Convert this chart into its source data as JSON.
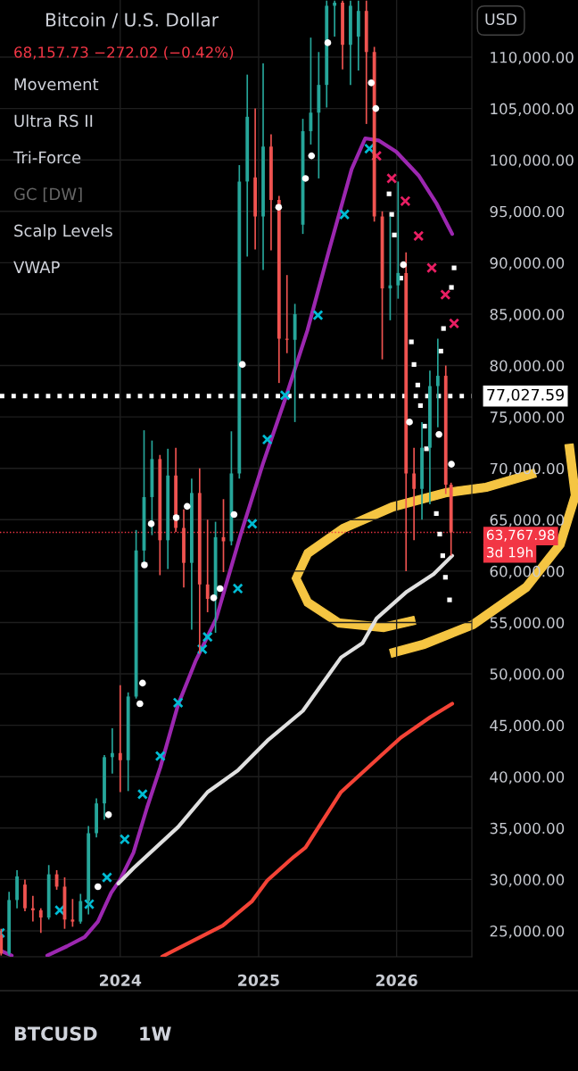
{
  "chart_data": {
    "type": "candlestick",
    "title": "Bitcoin / U.S. Dollar",
    "subtitle": "68,157.73 −272.02 (−0.42%)",
    "annotations": [
      "Movement",
      "Ultra RS II",
      "Tri-Force",
      "GC [DW]",
      "Scalp Levels",
      "VWAP",
      "3d 19h",
      "USD",
      "BTCUSD",
      "1W"
    ],
    "x": [
      "2023-02-20",
      "2023-03-13",
      "2023-04-03",
      "2023-04-24",
      "2023-05-15",
      "2023-06-05",
      "2023-06-26",
      "2023-07-17",
      "2023-08-07",
      "2023-08-28",
      "2023-09-18",
      "2023-10-09",
      "2023-10-30",
      "2023-11-20",
      "2023-12-11",
      "2024-01-01",
      "2024-01-22",
      "2024-02-12",
      "2024-03-04",
      "2024-03-25",
      "2024-04-15",
      "2024-05-06",
      "2024-05-27",
      "2024-06-17",
      "2024-07-08",
      "2024-07-29",
      "2024-08-19",
      "2024-09-09",
      "2024-09-30",
      "2024-10-21",
      "2024-11-11",
      "2024-12-02",
      "2024-12-23",
      "2025-01-13",
      "2025-02-03",
      "2025-02-24",
      "2025-03-17",
      "2025-04-07",
      "2025-04-28",
      "2025-05-19",
      "2025-06-09",
      "2025-06-30",
      "2025-07-21",
      "2025-08-11",
      "2025-09-01",
      "2025-09-22",
      "2025-10-13",
      "2025-11-03",
      "2025-11-24",
      "2025-12-15",
      "2026-01-05",
      "2026-01-26",
      "2026-02-16",
      "2026-03-09",
      "2026-03-30",
      "2026-04-20",
      "2026-05-11",
      "2026-05-25"
    ],
    "ohlc": [
      [
        24600,
        25200,
        22600,
        22800
      ],
      [
        22800,
        28800,
        22600,
        28000
      ],
      [
        28000,
        30900,
        27200,
        30300
      ],
      [
        29500,
        30000,
        26900,
        27200
      ],
      [
        27200,
        28400,
        25900,
        27000
      ],
      [
        27000,
        27200,
        24800,
        26300
      ],
      [
        26300,
        31400,
        26100,
        30500
      ],
      [
        30500,
        30900,
        29000,
        29300
      ],
      [
        29300,
        30200,
        25200,
        26100
      ],
      [
        26100,
        28100,
        25400,
        25900
      ],
      [
        25900,
        28600,
        25700,
        27900
      ],
      [
        27900,
        35200,
        26600,
        34500
      ],
      [
        34500,
        37900,
        34100,
        37400
      ],
      [
        37400,
        42100,
        35800,
        41900
      ],
      [
        41900,
        44700,
        40300,
        42300
      ],
      [
        42300,
        48900,
        38500,
        41600
      ],
      [
        41600,
        48200,
        38600,
        47800
      ],
      [
        47800,
        64000,
        47600,
        62000
      ],
      [
        62000,
        73700,
        60800,
        67200
      ],
      [
        67200,
        72700,
        63500,
        70900
      ],
      [
        70900,
        71300,
        59600,
        63000
      ],
      [
        63000,
        71900,
        60200,
        69300
      ],
      [
        69300,
        72000,
        63800,
        64200
      ],
      [
        64200,
        66000,
        58400,
        60800
      ],
      [
        60800,
        69000,
        54300,
        67600
      ],
      [
        67600,
        70000,
        52000,
        58700
      ],
      [
        58700,
        65000,
        56000,
        57300
      ],
      [
        57300,
        64800,
        54000,
        63300
      ],
      [
        63300,
        67000,
        59900,
        62900
      ],
      [
        62900,
        73600,
        62500,
        69500
      ],
      [
        69500,
        99500,
        69000,
        97900
      ],
      [
        97900,
        108300,
        90600,
        104200
      ],
      [
        98300,
        105000,
        91300,
        94500
      ],
      [
        94500,
        109400,
        89300,
        101300
      ],
      [
        101300,
        102500,
        91200,
        96100
      ],
      [
        96100,
        96500,
        78300,
        82600
      ],
      [
        82600,
        88800,
        81200,
        82500
      ],
      [
        82500,
        86000,
        74500,
        85000
      ],
      [
        93700,
        104000,
        92800,
        102800
      ],
      [
        102800,
        111900,
        101500,
        104600
      ],
      [
        104600,
        110500,
        98200,
        107300
      ],
      [
        107300,
        115500,
        105100,
        115000
      ],
      [
        115000,
        115500,
        112000,
        115300
      ],
      [
        115300,
        115500,
        108800,
        111200
      ],
      [
        111200,
        115500,
        107300,
        115000
      ],
      [
        112000,
        115500,
        108700,
        114500
      ],
      [
        114500,
        115500,
        103500,
        110500
      ],
      [
        110500,
        111000,
        94000,
        94500
      ],
      [
        94500,
        95000,
        80600,
        87500
      ],
      [
        87500,
        94500,
        84400,
        87800
      ],
      [
        87800,
        97900,
        86500,
        89000
      ],
      [
        89000,
        91000,
        60000,
        69500
      ],
      [
        69500,
        72000,
        63000,
        68000
      ],
      [
        68000,
        74500,
        65000,
        72000
      ],
      [
        72000,
        79500,
        66500,
        78000
      ],
      [
        78000,
        82600,
        74000,
        79000
      ],
      [
        79000,
        80000,
        67500,
        68400
      ],
      [
        68400,
        68600,
        61500,
        63767.98
      ]
    ],
    "series": [
      {
        "type": "line",
        "color": "#9c27b0",
        "x": [
          "2023-02-17",
          "2023-03-20",
          "2023-05-01",
          "2023-06-22",
          "2023-08-13",
          "2023-09-29",
          "2023-11-03",
          "2023-12-08",
          "2024-01-01",
          "2024-02-05",
          "2024-03-12",
          "2024-04-16",
          "2024-06-02",
          "2024-07-19",
          "2024-09-11",
          "2024-11-14",
          "2025-01-12",
          "2025-03-12",
          "2025-05-10",
          "2025-07-07",
          "2025-09-04",
          "2025-10-10",
          "2025-11-14",
          "2025-12-31",
          "2026-02-28",
          "2026-04-16",
          "2026-05-28"
        ],
        "values": [
          23100,
          22600,
          null,
          22600,
          23500,
          24400,
          25900,
          28700,
          30000,
          32600,
          37000,
          40900,
          47000,
          51300,
          55400,
          63500,
          70400,
          76700,
          83400,
          91300,
          99100,
          102100,
          101900,
          100800,
          98500,
          95800,
          92800
        ]
      },
      {
        "type": "scatter",
        "marker": "cross",
        "color": "#00bcd4",
        "x": [
          "2023-02-17",
          "2023-07-25",
          "2023-10-11",
          "2023-11-27",
          "2024-01-13",
          "2024-02-29",
          "2024-04-16",
          "2024-06-02",
          "2024-08-05",
          "2024-08-19",
          "2024-11-07",
          "2024-12-15",
          "2025-01-24",
          "2025-03-12",
          "2025-06-07",
          "2025-08-16",
          "2025-10-21"
        ],
        "values": [
          24800,
          27000,
          27600,
          30200,
          33900,
          38300,
          42000,
          47200,
          52400,
          53600,
          58300,
          64600,
          72800,
          77100,
          84900,
          94700,
          101100
        ]
      },
      {
        "type": "scatter",
        "marker": "cross",
        "color": "#e91e63",
        "x": [
          "2025-11-09",
          "2025-12-19",
          "2026-01-24",
          "2026-02-28",
          "2026-04-04",
          "2026-05-10",
          "2026-06-02"
        ],
        "values": [
          100400,
          98200,
          96000,
          92600,
          89500,
          86900,
          84100
        ]
      },
      {
        "type": "line",
        "color": "#e0e0e0",
        "x": [
          "2023-12-27",
          "2024-02-05",
          "2024-06-02",
          "2024-08-19",
          "2024-11-07",
          "2025-01-24",
          "2025-04-28",
          "2025-08-07",
          "2025-10-03",
          "2025-11-09",
          "2026-01-28",
          "2026-04-09",
          "2026-05-28"
        ],
        "values": [
          29600,
          31100,
          35100,
          38500,
          40600,
          43500,
          46400,
          51600,
          53000,
          55400,
          58000,
          59700,
          61500
        ]
      },
      {
        "type": "line",
        "color": "#f44336",
        "x": [
          "2024-04-21",
          "2024-06-02",
          "2024-09-28",
          "2024-12-15",
          "2025-01-24",
          "2025-04-04",
          "2025-05-05",
          "2025-08-07",
          "2025-11-19",
          "2026-01-12",
          "2026-03-31",
          "2026-05-28"
        ],
        "values": [
          22500,
          23300,
          25500,
          27900,
          29900,
          32200,
          33100,
          38500,
          42000,
          43800,
          45800,
          47100
        ]
      },
      {
        "type": "scatter",
        "marker": "square",
        "color": "#ffffff",
        "x": [
          "2025-12-12",
          "2025-12-19",
          "2025-12-26",
          "2026-01-12",
          "2026-02-09",
          "2026-02-16",
          "2026-02-26",
          "2026-03-05",
          "2026-03-16",
          "2026-03-21",
          "2026-04-16",
          "2026-04-25",
          "2026-05-03",
          "2026-05-10",
          "2026-05-21",
          "2026-04-28",
          "2026-05-05",
          "2026-05-26",
          "2026-06-02"
        ],
        "values": [
          96700,
          94700,
          92700,
          88500,
          82300,
          80100,
          78100,
          76100,
          74100,
          71900,
          65600,
          63600,
          61500,
          59400,
          57200,
          81400,
          83600,
          87600,
          89500
        ]
      },
      {
        "type": "scatter",
        "marker": "circle",
        "color": "#ffffff",
        "x": [
          "2023-11-03",
          "2023-12-01",
          "2024-02-22",
          "2024-02-29",
          "2024-03-05",
          "2024-03-23",
          "2024-05-28",
          "2024-06-26",
          "2024-09-04",
          "2024-09-21",
          "2024-10-28",
          "2024-11-19",
          "2025-02-23",
          "2025-05-05",
          "2025-05-21",
          "2025-07-03",
          "2025-10-26",
          "2025-11-07",
          "2026-01-19",
          "2026-02-04",
          "2026-04-23",
          "2026-05-26"
        ],
        "values": [
          29300,
          36300,
          47100,
          49100,
          60600,
          64600,
          65200,
          66300,
          57400,
          58300,
          65500,
          80100,
          95400,
          98200,
          100400,
          111400,
          107500,
          105000,
          89800,
          74500,
          73300,
          70400
        ]
      }
    ],
    "ref_lines": [
      {
        "axis": "y",
        "value": 77027.59,
        "label": "77,027.59",
        "color": "#ffffff",
        "line_style": "dotted"
      },
      {
        "axis": "y",
        "value": 63767.98,
        "label": "63,767.98",
        "color": "#f23645",
        "line_style": "dotted"
      }
    ],
    "xlim": [
      "2023-02-17",
      "2026-07-19"
    ],
    "xticks": [
      {
        "value": "2024-01-01",
        "label": "2024"
      },
      {
        "value": "2025-01-01",
        "label": "2025"
      },
      {
        "value": "2026-01-01",
        "label": "2026"
      }
    ],
    "ylim": [
      22480,
      115560
    ],
    "yticks": [
      {
        "value": 25000,
        "label": "25,000.00"
      },
      {
        "value": 30000,
        "label": "30,000.00"
      },
      {
        "value": 35000,
        "label": "35,000.00"
      },
      {
        "value": 40000,
        "label": "40,000.00"
      },
      {
        "value": 45000,
        "label": "45,000.00"
      },
      {
        "value": 50000,
        "label": "50,000.00"
      },
      {
        "value": 55000,
        "label": "55,000.00"
      },
      {
        "value": 60000,
        "label": "60,000.00"
      },
      {
        "value": 65000,
        "label": "65,000.00"
      },
      {
        "value": 70000,
        "label": "70,000.00"
      },
      {
        "value": 75000,
        "label": "75,000.00"
      },
      {
        "value": 80000,
        "label": "80,000.00"
      },
      {
        "value": 85000,
        "label": "85,000.00"
      },
      {
        "value": 90000,
        "label": "90,000.00"
      },
      {
        "value": 95000,
        "label": "95,000.00"
      },
      {
        "value": 100000,
        "label": "100,000.00"
      },
      {
        "value": 105000,
        "label": "105,000.00"
      },
      {
        "value": 110000,
        "label": "110,000.00"
      }
    ],
    "grid": true,
    "legend": false
  }
}
